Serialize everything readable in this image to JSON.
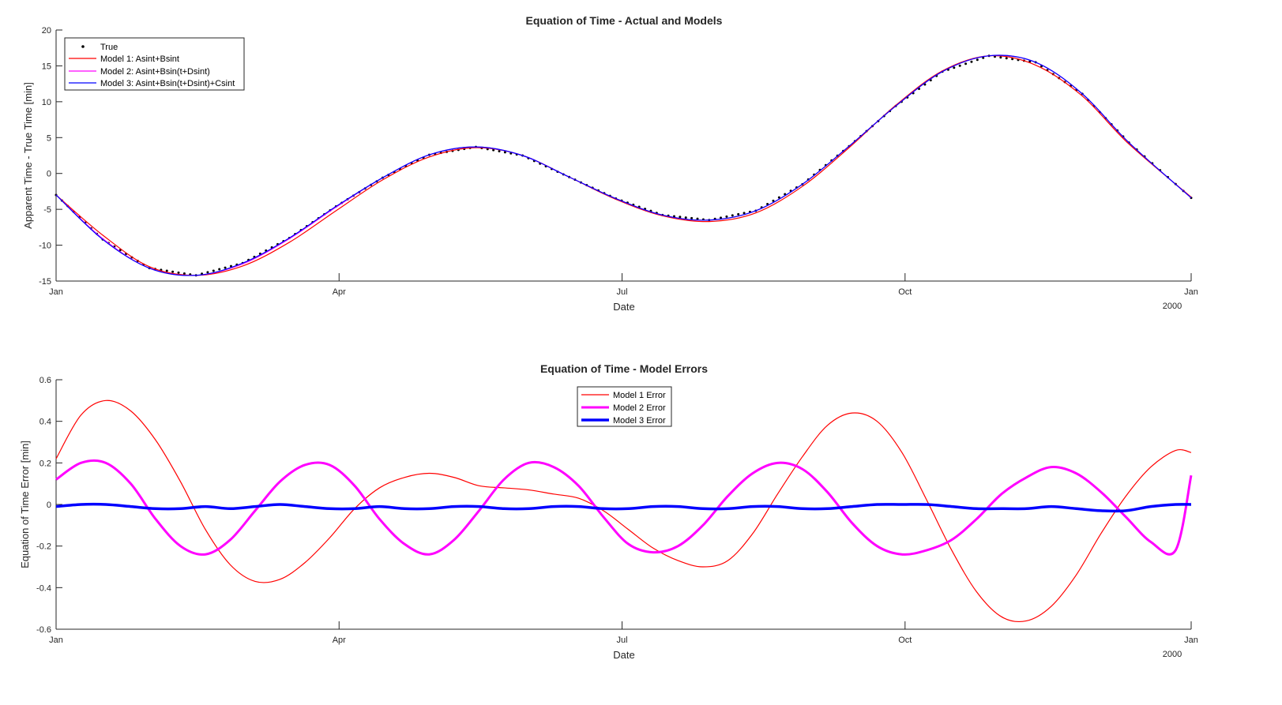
{
  "chart_data": [
    {
      "type": "line",
      "title": "Equation of Time - Actual and Models",
      "xlabel": "Date",
      "ylabel": "Apparent Time - True Time [min]",
      "xticks": [
        "Jan",
        "Apr",
        "Jul",
        "Oct",
        "Jan"
      ],
      "x_year_label": "2000",
      "ylim": [
        -15,
        20
      ],
      "yticks": [
        "-15",
        "-10",
        "-5",
        "0",
        "5",
        "10",
        "15",
        "20"
      ],
      "legend_position": "top-left",
      "x_days": [
        0,
        15,
        30,
        45,
        60,
        75,
        90,
        105,
        120,
        135,
        150,
        165,
        180,
        195,
        210,
        225,
        240,
        255,
        270,
        285,
        300,
        315,
        330,
        345,
        365
      ],
      "series": [
        {
          "name": "True",
          "style": "dots",
          "color": "#000000",
          "values": [
            -3.0,
            -9.2,
            -13.2,
            -14.2,
            -12.5,
            -9.0,
            -4.6,
            -0.6,
            2.6,
            3.7,
            2.5,
            -0.5,
            -3.5,
            -5.8,
            -6.5,
            -5.2,
            -1.5,
            3.8,
            9.4,
            14.2,
            16.4,
            15.5,
            11.1,
            4.3,
            -3.4
          ]
        },
        {
          "name": "Model 1: Asint+Bsint",
          "style": "line",
          "color": "#ff0000",
          "values": [
            -3.0,
            -8.6,
            -13.0,
            -14.2,
            -12.9,
            -9.6,
            -5.2,
            -0.9,
            2.3,
            3.6,
            2.5,
            -0.5,
            -3.6,
            -5.9,
            -6.7,
            -5.5,
            -1.8,
            3.6,
            9.5,
            14.3,
            16.4,
            15.1,
            10.8,
            4.1,
            -3.3
          ]
        },
        {
          "name": "Model 2: Asint+Bsin(t+Dsint)",
          "style": "line",
          "color": "#ff00ff",
          "values": [
            -3.0,
            -9.1,
            -13.2,
            -14.2,
            -12.6,
            -9.1,
            -4.7,
            -0.6,
            2.6,
            3.7,
            2.5,
            -0.5,
            -3.5,
            -5.8,
            -6.5,
            -5.2,
            -1.5,
            3.8,
            9.4,
            14.2,
            16.4,
            15.5,
            11.1,
            4.3,
            -3.4
          ]
        },
        {
          "name": "Model 3: Asint+Bsin(t+Dsint)+Csint",
          "style": "line",
          "color": "#0000ff",
          "values": [
            -3.0,
            -9.2,
            -13.2,
            -14.2,
            -12.5,
            -9.0,
            -4.6,
            -0.6,
            2.6,
            3.7,
            2.5,
            -0.5,
            -3.5,
            -5.8,
            -6.5,
            -5.2,
            -1.5,
            3.8,
            9.4,
            14.2,
            16.4,
            15.5,
            11.1,
            4.3,
            -3.4
          ]
        }
      ]
    },
    {
      "type": "line",
      "title": "Equation of Time - Model Errors",
      "xlabel": "Date",
      "ylabel": "Equation of Time Error [min]",
      "xticks": [
        "Jan",
        "Apr",
        "Jul",
        "Oct",
        "Jan"
      ],
      "x_year_label": "2000",
      "ylim": [
        -0.6,
        0.6
      ],
      "yticks": [
        "-0.6",
        "-0.4",
        "-0.2",
        "0",
        "0.2",
        "0.4",
        "0.6"
      ],
      "legend_position": "top-center",
      "x_days": [
        0,
        8,
        16,
        24,
        32,
        40,
        48,
        56,
        64,
        72,
        80,
        88,
        96,
        104,
        112,
        120,
        128,
        136,
        144,
        152,
        160,
        168,
        176,
        184,
        192,
        200,
        208,
        216,
        224,
        232,
        240,
        248,
        256,
        264,
        272,
        280,
        288,
        296,
        304,
        312,
        320,
        328,
        336,
        344,
        352,
        360,
        365
      ],
      "series": [
        {
          "name": "Model 1 Error",
          "color": "#ff0000",
          "width": 1.2,
          "values": [
            0.22,
            0.43,
            0.5,
            0.45,
            0.31,
            0.11,
            -0.12,
            -0.29,
            -0.37,
            -0.36,
            -0.28,
            -0.16,
            -0.02,
            0.08,
            0.13,
            0.15,
            0.13,
            0.09,
            0.08,
            0.07,
            0.05,
            0.03,
            -0.03,
            -0.12,
            -0.21,
            -0.27,
            -0.3,
            -0.27,
            -0.14,
            0.05,
            0.23,
            0.38,
            0.44,
            0.4,
            0.25,
            0.02,
            -0.22,
            -0.42,
            -0.54,
            -0.56,
            -0.49,
            -0.34,
            -0.14,
            0.04,
            0.18,
            0.26,
            0.25
          ]
        },
        {
          "name": "Model 2 Error",
          "color": "#ff00ff",
          "width": 3,
          "values": [
            0.12,
            0.2,
            0.2,
            0.1,
            -0.07,
            -0.2,
            -0.24,
            -0.17,
            -0.03,
            0.11,
            0.19,
            0.19,
            0.09,
            -0.07,
            -0.19,
            -0.24,
            -0.17,
            -0.03,
            0.12,
            0.2,
            0.18,
            0.09,
            -0.06,
            -0.19,
            -0.23,
            -0.2,
            -0.1,
            0.04,
            0.15,
            0.2,
            0.17,
            0.06,
            -0.09,
            -0.2,
            -0.24,
            -0.22,
            -0.17,
            -0.07,
            0.05,
            0.13,
            0.18,
            0.15,
            0.06,
            -0.06,
            -0.18,
            -0.22,
            0.14
          ]
        },
        {
          "name": "Model 3 Error",
          "color": "#0000ff",
          "width": 3.5,
          "values": [
            -0.01,
            0.0,
            0.0,
            -0.01,
            -0.02,
            -0.02,
            -0.01,
            -0.02,
            -0.01,
            0.0,
            -0.01,
            -0.02,
            -0.02,
            -0.01,
            -0.02,
            -0.02,
            -0.01,
            -0.01,
            -0.02,
            -0.02,
            -0.01,
            -0.01,
            -0.02,
            -0.02,
            -0.01,
            -0.01,
            -0.02,
            -0.02,
            -0.01,
            -0.01,
            -0.02,
            -0.02,
            -0.01,
            0.0,
            0.0,
            0.0,
            -0.01,
            -0.02,
            -0.02,
            -0.02,
            -0.01,
            -0.02,
            -0.03,
            -0.03,
            -0.01,
            0.0,
            0.0
          ]
        }
      ]
    }
  ]
}
